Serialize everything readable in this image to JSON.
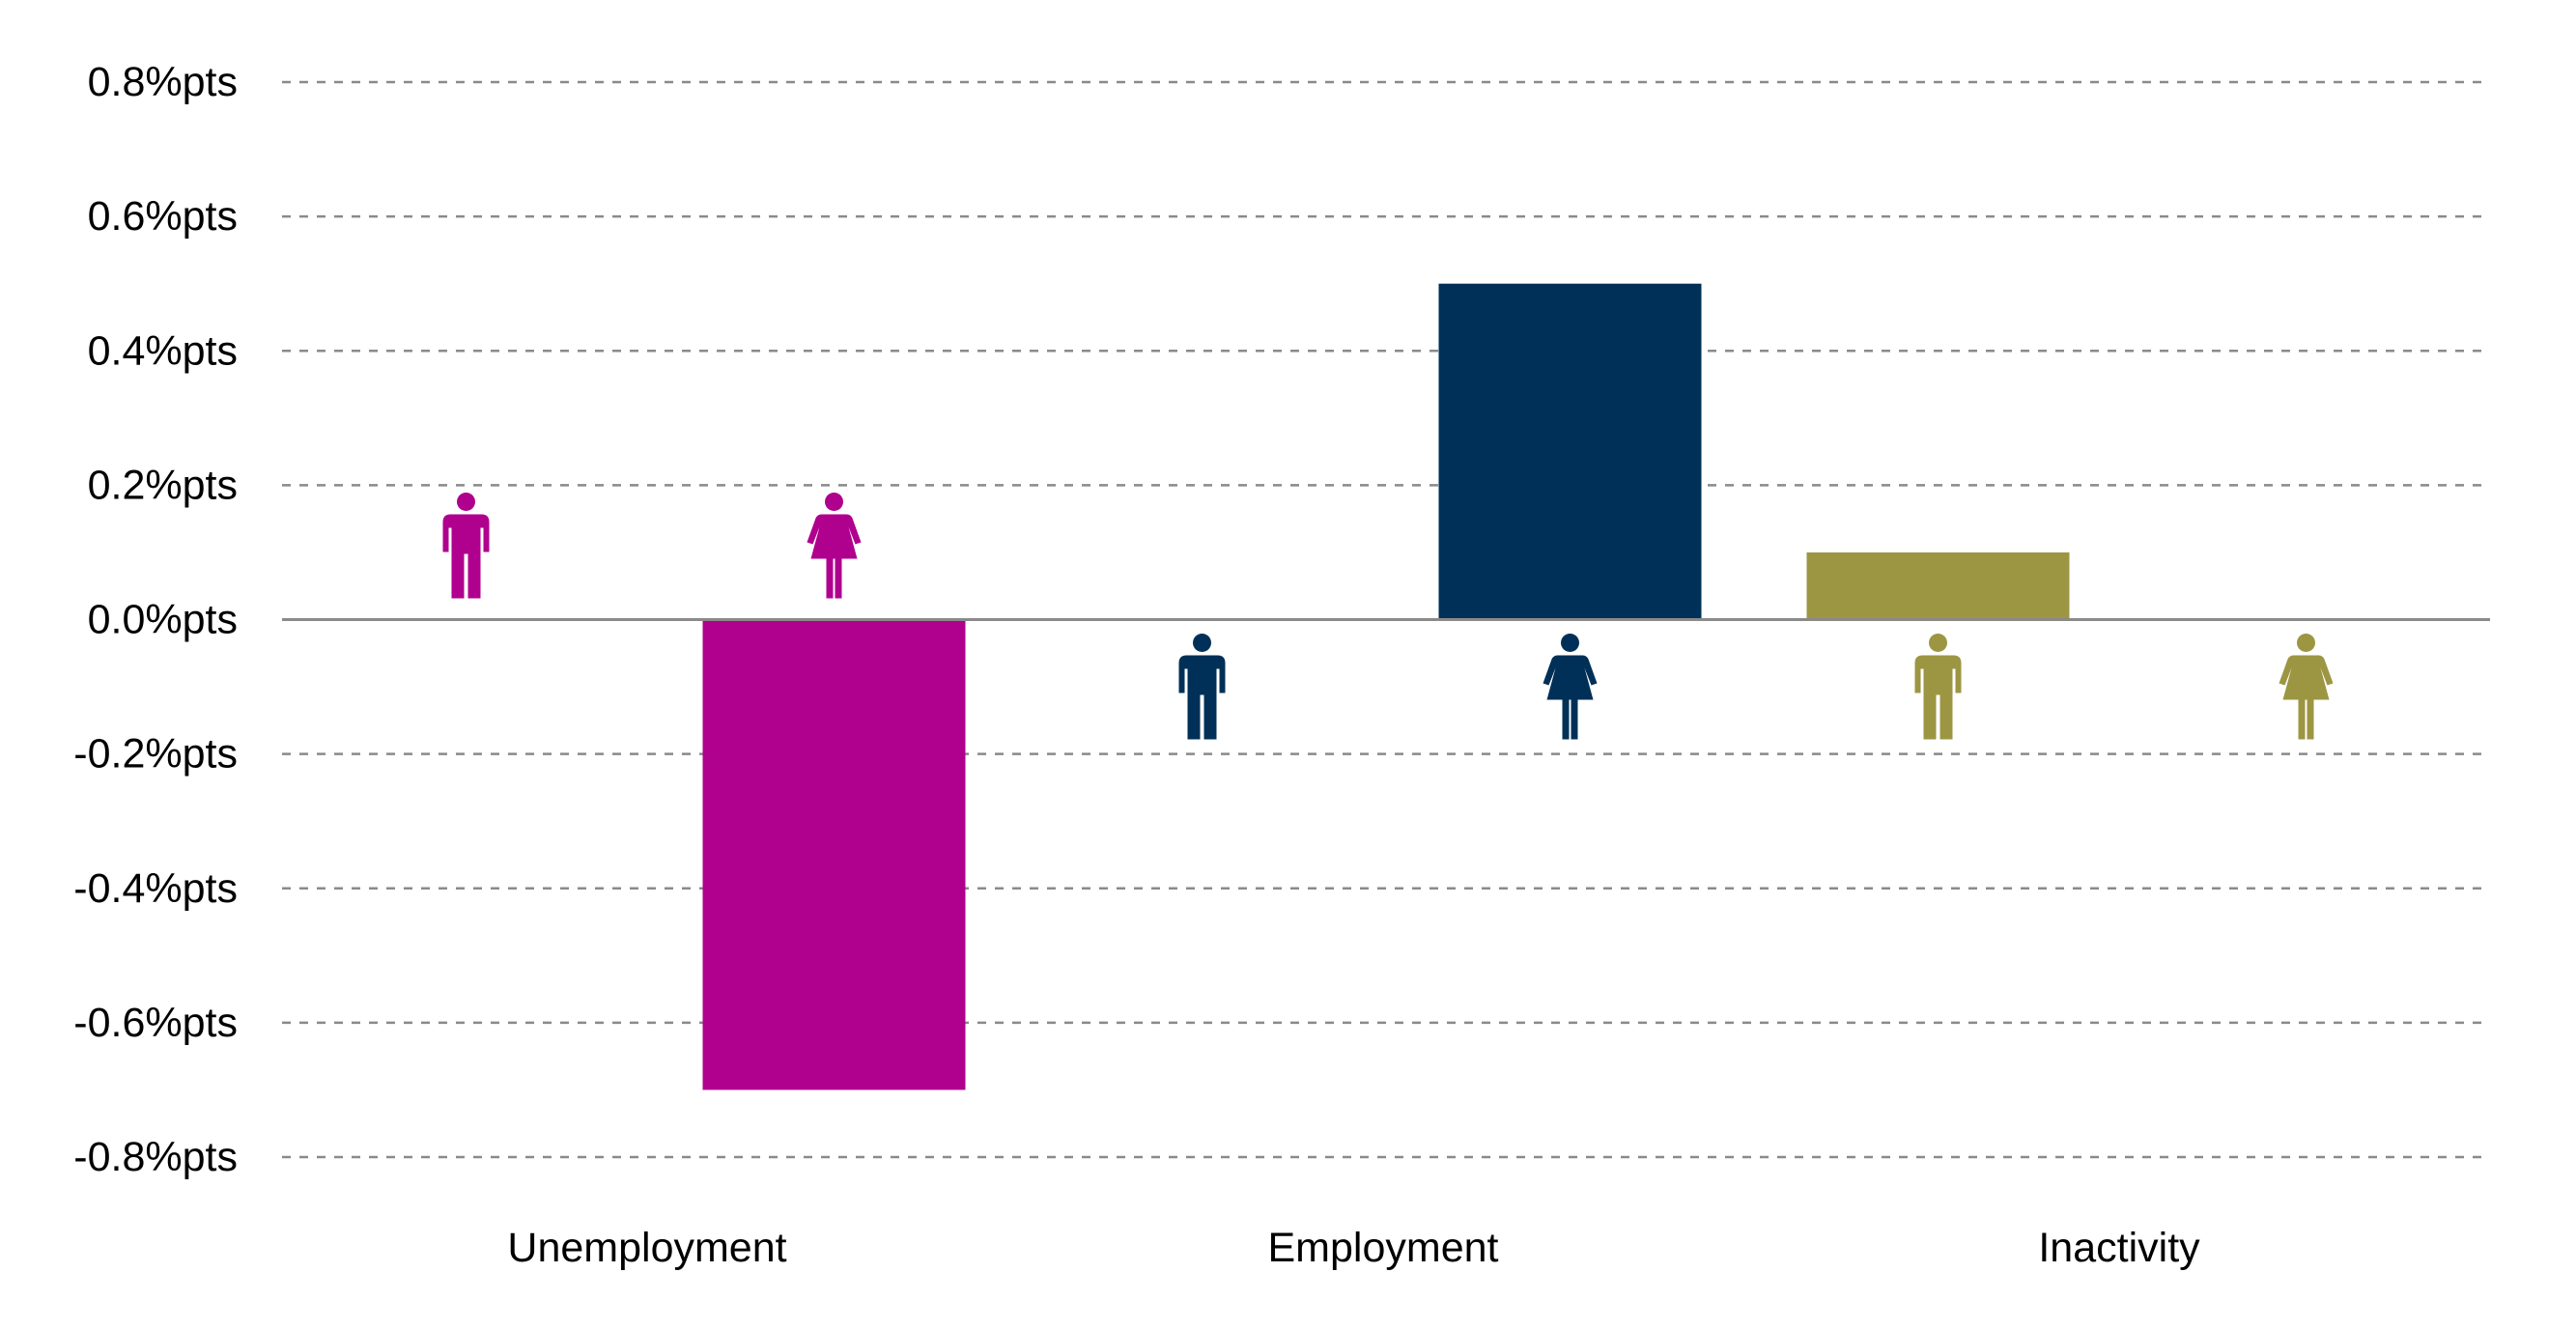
{
  "chart_data": {
    "type": "bar",
    "title": "",
    "xlabel": "",
    "ylabel": "",
    "ylim": [
      -0.8,
      0.8
    ],
    "grid": true,
    "y_ticks": [
      0.8,
      0.6,
      0.4,
      0.2,
      0.0,
      -0.2,
      -0.4,
      -0.6,
      -0.8
    ],
    "y_tick_labels": [
      "0.8%pts",
      "0.6%pts",
      "0.4%pts",
      "0.2%pts",
      "0.0%pts",
      "-0.2%pts",
      "-0.4%pts",
      "-0.6%pts",
      "-0.8%pts"
    ],
    "categories": [
      "Unemployment",
      "Employment",
      "Inactivity"
    ],
    "groups": [
      {
        "category": "Unemployment",
        "color": "#b0008e",
        "bars": [
          {
            "sex": "male",
            "icon": "man-icon",
            "value": 0.0
          },
          {
            "sex": "female",
            "icon": "woman-icon",
            "value": -0.7
          }
        ]
      },
      {
        "category": "Employment",
        "color": "#003057",
        "bars": [
          {
            "sex": "male",
            "icon": "man-icon",
            "value": 0.0
          },
          {
            "sex": "female",
            "icon": "woman-icon",
            "value": 0.5
          }
        ]
      },
      {
        "category": "Inactivity",
        "color": "#9c9643",
        "bars": [
          {
            "sex": "male",
            "icon": "man-icon",
            "value": 0.1
          },
          {
            "sex": "female",
            "icon": "woman-icon",
            "value": 0.0
          }
        ]
      }
    ]
  }
}
